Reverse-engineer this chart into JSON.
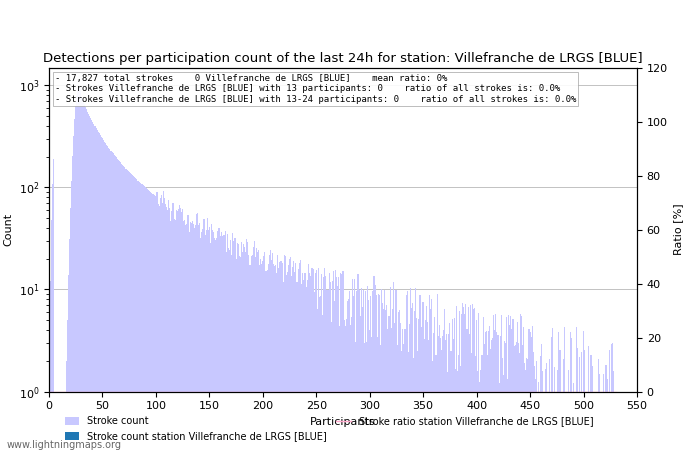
{
  "title": "Detections per participation count of the last 24h for station: Villefranche de LRGS [BLUE]",
  "xlabel": "Participants",
  "ylabel_left": "Count",
  "ylabel_right": "Ratio [%]",
  "annotation_lines": [
    "- 17,827 total strokes    0 Villefranche de LRGS [BLUE]    mean ratio: 0%",
    "- Strokes Villefranche de LRGS [BLUE] with 13 participants: 0    ratio of all strokes is: 0.0%",
    "- Strokes Villefranche de LRGS [BLUE] with 13-24 participants: 0    ratio of all strokes is: 0.0%"
  ],
  "bar_color_light": "#c8c8ff",
  "bar_color_dark": "#5555cc",
  "ratio_line_color": "#ffaacc",
  "background_color": "#ffffff",
  "grid_color": "#aaaaaa",
  "xlim": [
    0,
    550
  ],
  "ylim_right": [
    0,
    120
  ],
  "yticks_right": [
    0,
    20,
    40,
    60,
    80,
    100,
    120
  ],
  "legend_labels": [
    "Stroke count",
    "Stroke count station Villefranche de LRGS [BLUE]",
    "Stroke ratio station Villefranche de LRGS [BLUE]"
  ],
  "watermark": "www.lightningmaps.org",
  "title_fontsize": 9.5,
  "annotation_fontsize": 6.5,
  "axis_fontsize": 8
}
